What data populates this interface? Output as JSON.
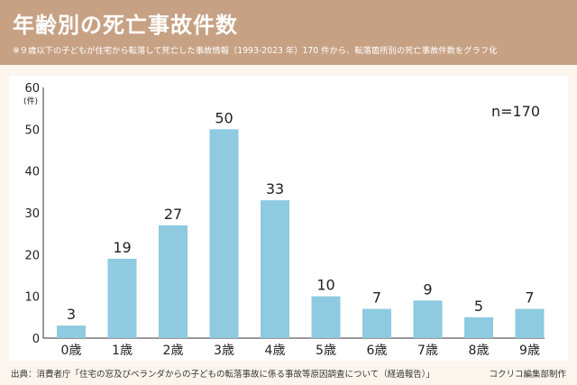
{
  "header": {
    "title": "年齢別の死亡事故件数",
    "subtitle": "※９歳以下の子どもが住宅から転落して死亡した事故情報（1993-2023 年）170 件から、転落箇所別の死亡事故件数をグラフ化"
  },
  "chart_data": {
    "type": "bar",
    "title": "年齢別の死亡事故件数",
    "categories": [
      "0歳",
      "1歳",
      "2歳",
      "3歳",
      "4歳",
      "5歳",
      "6歳",
      "7歳",
      "8歳",
      "9歳"
    ],
    "values": [
      3,
      19,
      27,
      50,
      33,
      10,
      7,
      9,
      5,
      7
    ],
    "ylabel": "(件)",
    "ylim": [
      0,
      60
    ],
    "yticks": [
      "0",
      "10",
      "20",
      "30",
      "40",
      "50",
      "60"
    ],
    "annotation": "n=170",
    "grid": false,
    "bar_color": "#8ecae0"
  },
  "footer": {
    "source": "出典：消費者庁「住宅の窓及びベランダからの子どもの転落事故に係る事故等原因調査について（経過報告）」",
    "credit": "コクリコ編集部制作"
  }
}
